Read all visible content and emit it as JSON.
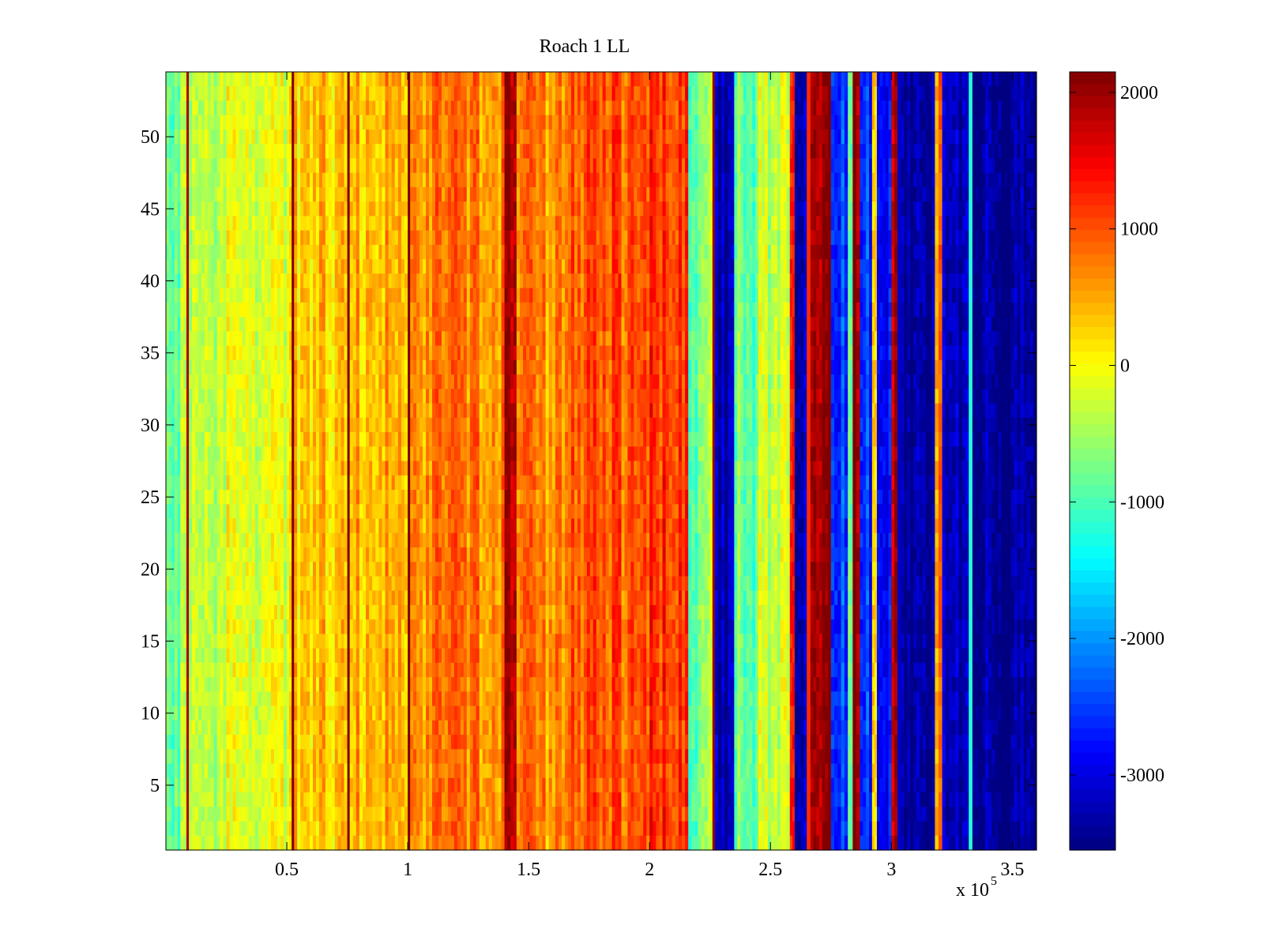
{
  "chart_data": {
    "type": "heatmap",
    "title": "Roach 1 LL",
    "xlabel": "",
    "ylabel": "",
    "colormap": "jet",
    "x_multiplier_label": "x 10",
    "x_multiplier_exponent": "5",
    "x_range": [
      0,
      360000
    ],
    "y_range": [
      0.5,
      54.5
    ],
    "x_ticks": [
      0.5,
      1,
      1.5,
      2,
      2.5,
      3,
      3.5
    ],
    "x_tick_labels": [
      "0.5",
      "1",
      "1.5",
      "2",
      "2.5",
      "3",
      "3.5"
    ],
    "y_ticks": [
      5,
      10,
      15,
      20,
      25,
      30,
      35,
      40,
      45,
      50
    ],
    "y_tick_labels": [
      "5",
      "10",
      "15",
      "20",
      "25",
      "30",
      "35",
      "40",
      "45",
      "50"
    ],
    "colorbar": {
      "range": [
        -3550,
        2150
      ],
      "ticks": [
        2000,
        1000,
        0,
        -1000,
        -2000,
        -3000
      ],
      "tick_labels": [
        "2000",
        "1000",
        "0",
        "-1000",
        "-2000",
        "-3000"
      ]
    },
    "column_profile": [
      {
        "x_end": 6000,
        "value": -800
      },
      {
        "x_end": 8500,
        "value": -450
      },
      {
        "x_end": 9500,
        "value": 1900
      },
      {
        "x_end": 25000,
        "value": -500
      },
      {
        "x_end": 50000,
        "value": -150
      },
      {
        "x_end": 52000,
        "value": 300
      },
      {
        "x_end": 53000,
        "value": 2150
      },
      {
        "x_end": 75000,
        "value": 300
      },
      {
        "x_end": 76000,
        "value": 2150
      },
      {
        "x_end": 100000,
        "value": 450
      },
      {
        "x_end": 101000,
        "value": 2150
      },
      {
        "x_end": 140000,
        "value": 700
      },
      {
        "x_end": 145000,
        "value": 1900
      },
      {
        "x_end": 165000,
        "value": 650
      },
      {
        "x_end": 200000,
        "value": 950
      },
      {
        "x_end": 216000,
        "value": 1150
      },
      {
        "x_end": 224000,
        "value": -800
      },
      {
        "x_end": 226000,
        "value": -300
      },
      {
        "x_end": 227000,
        "value": 2000
      },
      {
        "x_end": 235000,
        "value": -3300
      },
      {
        "x_end": 245000,
        "value": -800
      },
      {
        "x_end": 258000,
        "value": -300
      },
      {
        "x_end": 260000,
        "value": 1500
      },
      {
        "x_end": 265000,
        "value": -3300
      },
      {
        "x_end": 266500,
        "value": 1200
      },
      {
        "x_end": 275000,
        "value": 2150
      },
      {
        "x_end": 282000,
        "value": -2500
      },
      {
        "x_end": 284000,
        "value": -900
      },
      {
        "x_end": 287000,
        "value": 2150
      },
      {
        "x_end": 292000,
        "value": -2600
      },
      {
        "x_end": 294000,
        "value": 300
      },
      {
        "x_end": 300000,
        "value": -2700
      },
      {
        "x_end": 302500,
        "value": 2000
      },
      {
        "x_end": 304000,
        "value": -3200
      },
      {
        "x_end": 318000,
        "value": -3300
      },
      {
        "x_end": 321000,
        "value": 600
      },
      {
        "x_end": 332000,
        "value": -3300
      },
      {
        "x_end": 333500,
        "value": -1200
      },
      {
        "x_end": 360000,
        "value": -3450
      }
    ]
  }
}
